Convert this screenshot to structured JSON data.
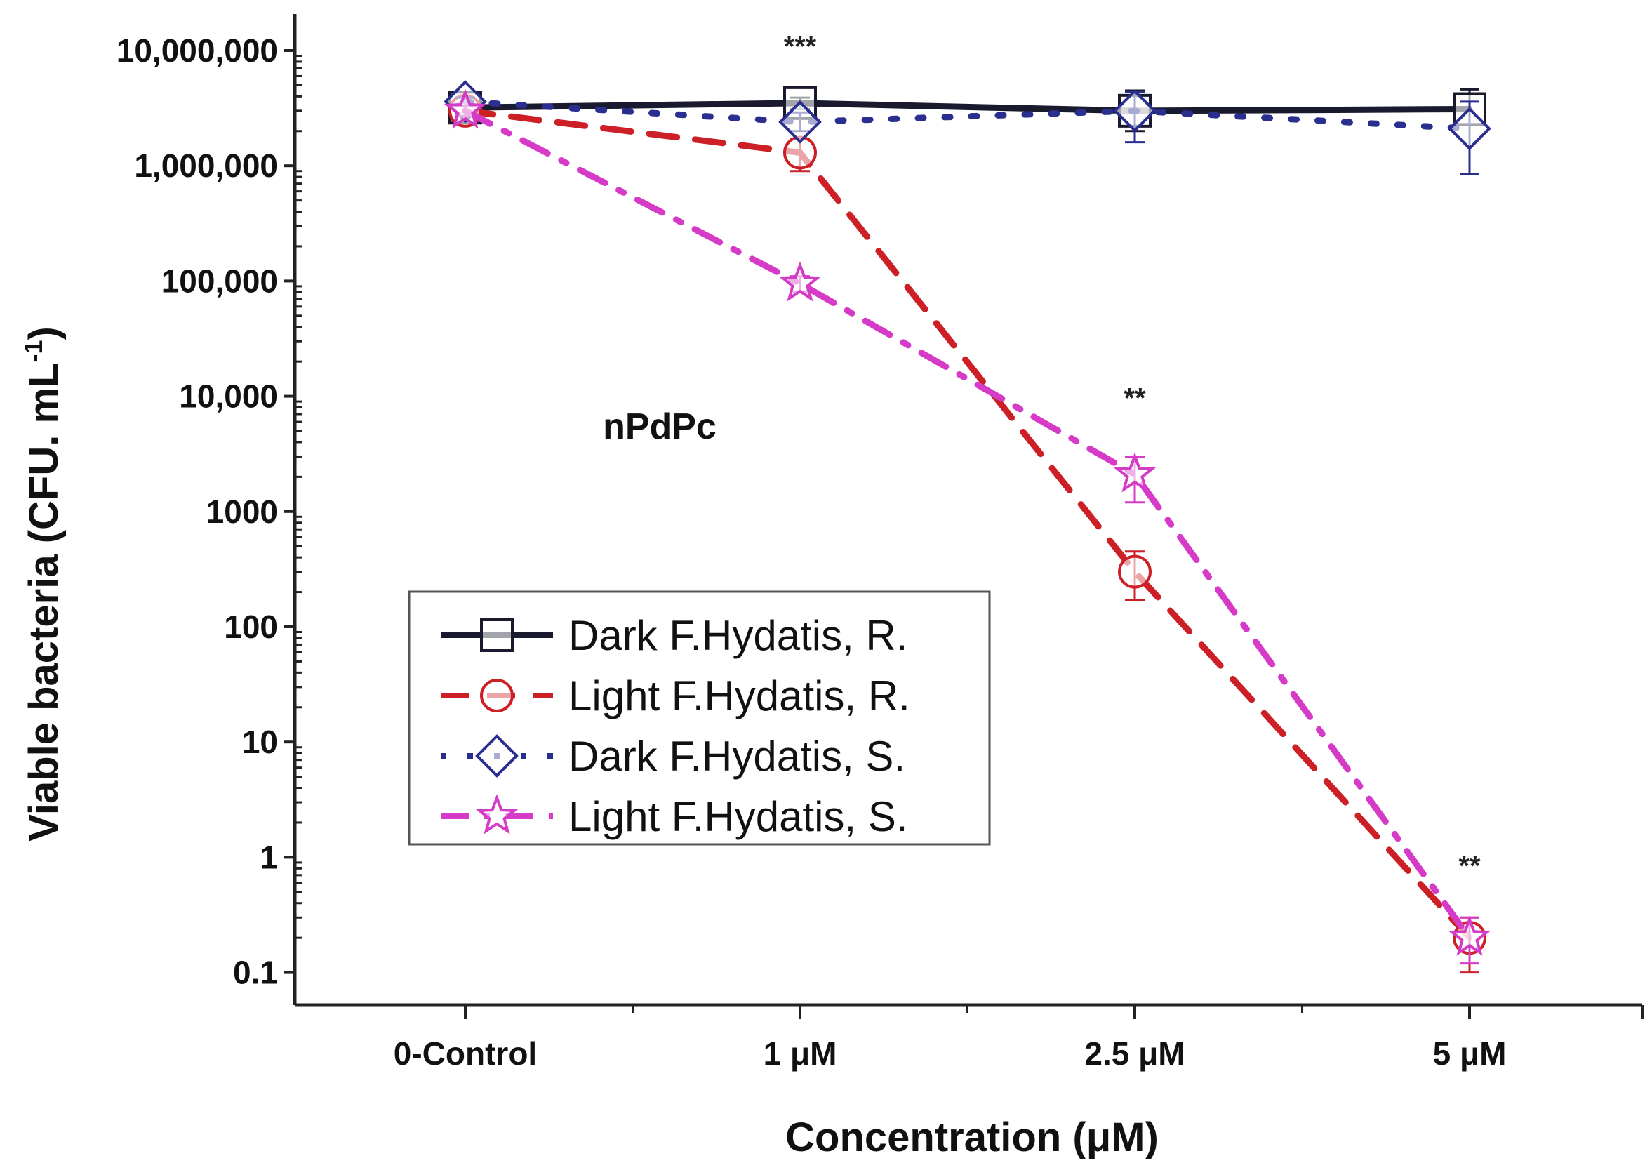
{
  "chart_data": {
    "type": "line",
    "title": "",
    "annotation": "nPdPc",
    "xlabel": "Concentration (μM)",
    "ylabel_main": "Viable bacteria (CFU. mL",
    "ylabel_sup": "-1",
    "ylabel_end": ")",
    "yscale": "log",
    "ylim": [
      0.05,
      15000000
    ],
    "categories": [
      "0-Control",
      "1 μM",
      "2.5 μM",
      "5 μM"
    ],
    "y_ticks": [
      {
        "value": 0.1,
        "label": "0.1"
      },
      {
        "value": 1,
        "label": "1"
      },
      {
        "value": 10,
        "label": "10"
      },
      {
        "value": 100,
        "label": "100"
      },
      {
        "value": 1000,
        "label": "1000"
      },
      {
        "value": 10000,
        "label": "10,000"
      },
      {
        "value": 100000,
        "label": "100,000"
      },
      {
        "value": 1000000,
        "label": "1,000,000"
      },
      {
        "value": 10000000,
        "label": "10,000,000"
      }
    ],
    "series": [
      {
        "name": "Dark F.Hydatis, R.",
        "color": "#1a1a2e",
        "dash": "solid",
        "marker": "square",
        "values": [
          3200000,
          3500000,
          3000000,
          3100000
        ],
        "err_low": [
          2900000,
          3100000,
          2000000,
          2300000
        ],
        "err_high": [
          3500000,
          3900000,
          4500000,
          4600000
        ]
      },
      {
        "name": "Light F.Hydatis, R.",
        "color": "#cc1f26",
        "dash": "dash",
        "marker": "circle",
        "values": [
          3000000,
          1300000,
          300,
          0.2
        ],
        "err_low": [
          2800000,
          900000,
          170,
          0.1
        ],
        "err_high": [
          3300000,
          1700000,
          450,
          0.3
        ]
      },
      {
        "name": "Dark F.Hydatis, S.",
        "color": "#2a2f8f",
        "dash": "dot",
        "marker": "diamond",
        "values": [
          3600000,
          2400000,
          3000000,
          2100000
        ],
        "err_low": [
          3300000,
          2000000,
          1600000,
          850000
        ],
        "err_high": [
          3900000,
          2900000,
          4400000,
          3600000
        ]
      },
      {
        "name": "Light F.Hydatis, S.",
        "color": "#d63bc8",
        "dash": "dashdot",
        "marker": "star",
        "values": [
          3000000,
          95000,
          2100,
          0.2
        ],
        "err_low": [
          2700000,
          80000,
          1200,
          0.12
        ],
        "err_high": [
          3300000,
          110000,
          3000,
          0.3
        ]
      }
    ],
    "significance": [
      {
        "category": "1 μM",
        "label": "***",
        "value": 9000000
      },
      {
        "category": "2.5 μM",
        "label": "**",
        "value": 8000
      },
      {
        "category": "5 μM",
        "label": "**",
        "value": 0.7
      }
    ],
    "legend": "center-left",
    "grid": false
  }
}
